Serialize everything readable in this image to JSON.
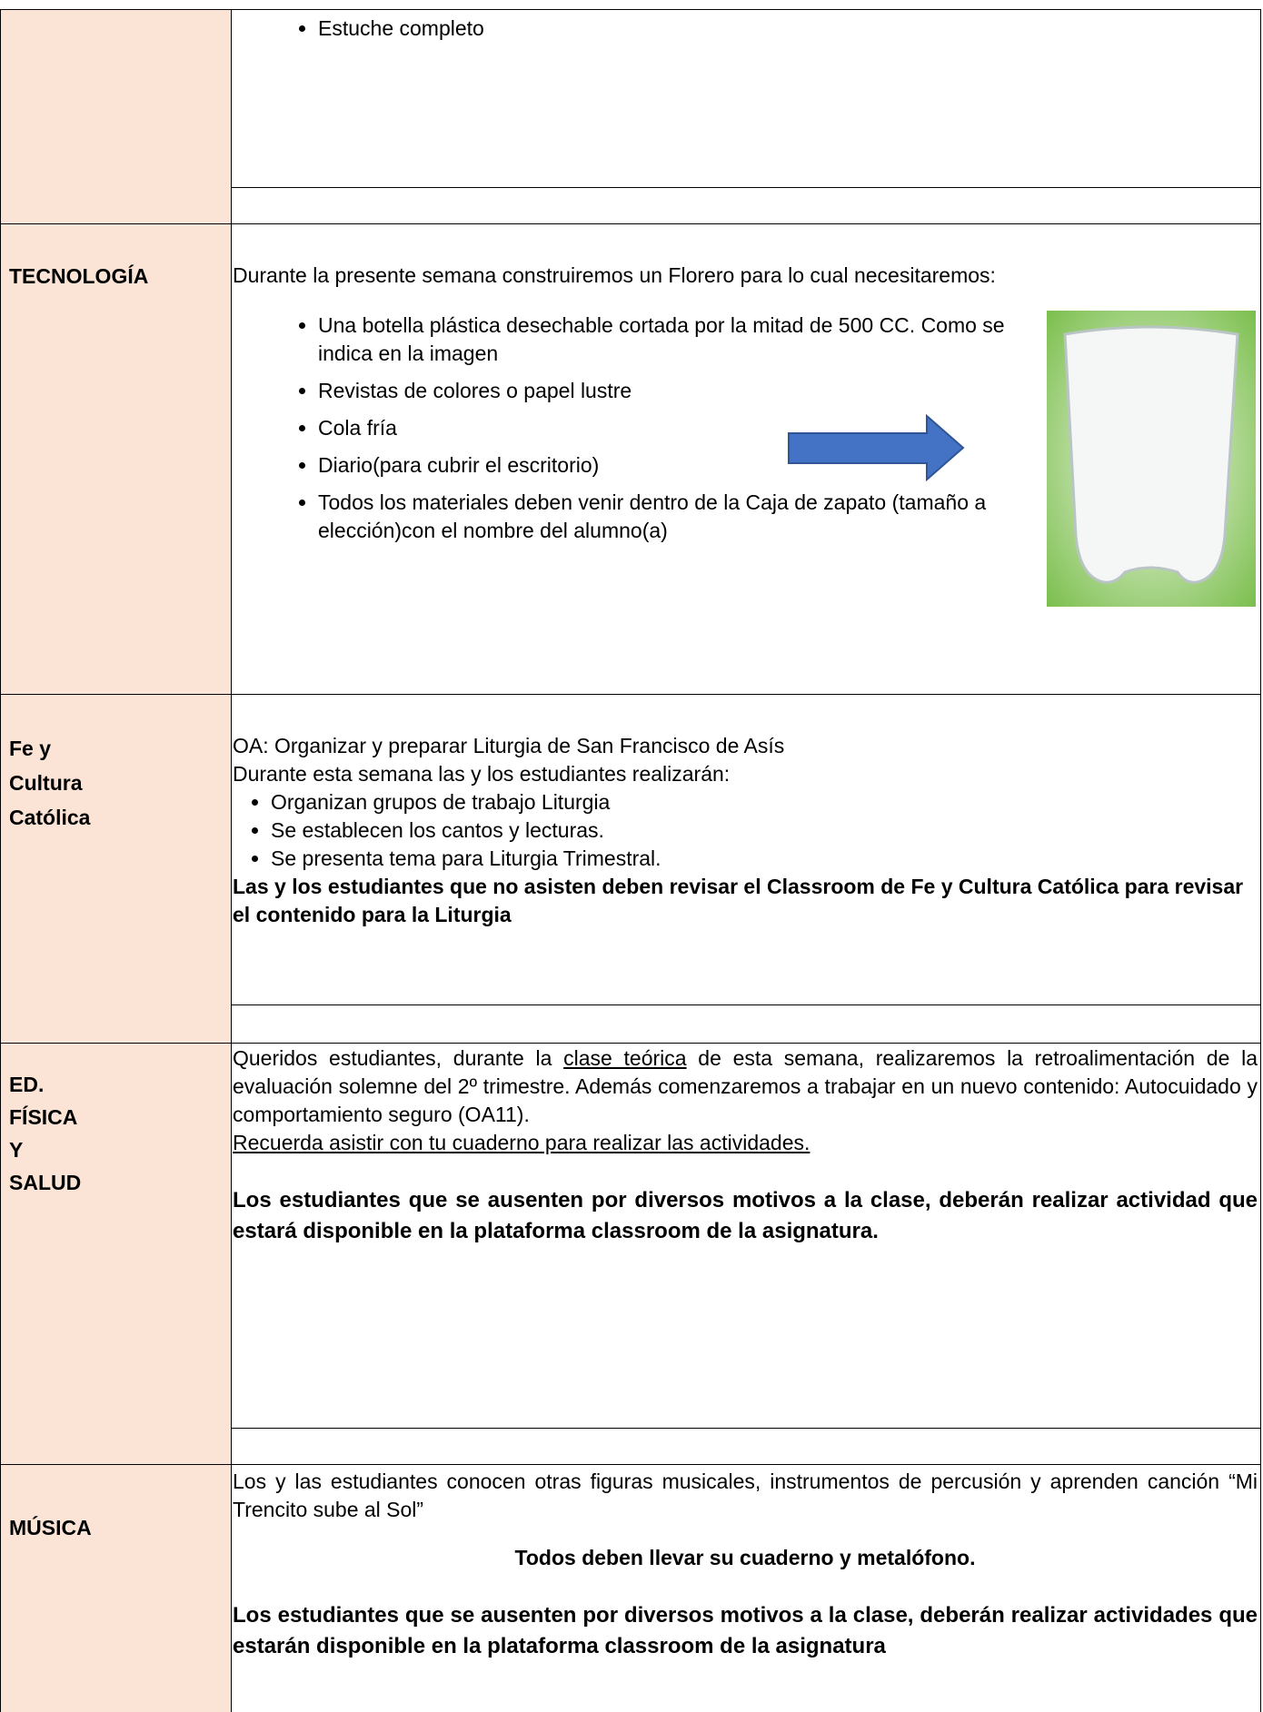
{
  "row1": {
    "bullets": [
      "Estuche completo"
    ]
  },
  "tecnologia": {
    "subject": "TECNOLOGÍA",
    "intro": "Durante la presente  semana construiremos un Florero para lo cual necesitaremos:",
    "bullets": [
      "Una botella plástica desechable cortada por la mitad de 500 CC. Como se indica en la imagen",
      "Revistas de colores o papel lustre",
      "Cola fría",
      "Diario(para cubrir el escritorio)",
      "Todos los materiales deben venir dentro de la Caja de zapato (tamaño a elección)con el nombre del alumno(a)"
    ]
  },
  "fe": {
    "subject_lines": [
      "Fe y",
      "Cultura",
      "Católica"
    ],
    "objective": "OA: Organizar y preparar Liturgia de San Francisco de Asís",
    "intro": "Durante esta semana las y los estudiantes realizarán:",
    "bullets": [
      "Organizan grupos de trabajo Liturgia",
      "Se establecen los cantos y lecturas.",
      "Se presenta tema para Liturgia Trimestral."
    ],
    "note": "Las y los estudiantes que no asisten deben revisar el Classroom de Fe y Cultura Católica para revisar el contenido para la Liturgia"
  },
  "ed_fisica": {
    "subject_lines": [
      "ED.",
      "FÍSICA",
      "Y",
      "SALUD"
    ],
    "para_parts": [
      "Queridos estudiantes, durante la ",
      "clase teórica",
      " de esta semana, realizaremos la retroalimentación de la evaluación solemne del 2º trimestre. Además comenzaremos a trabajar en un nuevo contenido: Autocuidado y comportamiento seguro (OA11)."
    ],
    "reminder": "Recuerda asistir con tu cuaderno para realizar las actividades.",
    "note": "Los estudiantes que se ausenten por diversos motivos a la clase, deberán realizar actividad que estará disponible en la plataforma classroom de la asignatura."
  },
  "musica": {
    "subject": "MÚSICA",
    "para": "Los y las estudiantes conocen otras figuras musicales, instrumentos de percusión y aprenden canción “Mi Trencito sube al Sol”",
    "center": "Todos deben llevar su cuaderno y metalófono.",
    "note": "Los estudiantes que se ausenten por diversos motivos a la clase, deberán realizar actividades que estarán disponible en la plataforma classroom de la asignatura"
  }
}
